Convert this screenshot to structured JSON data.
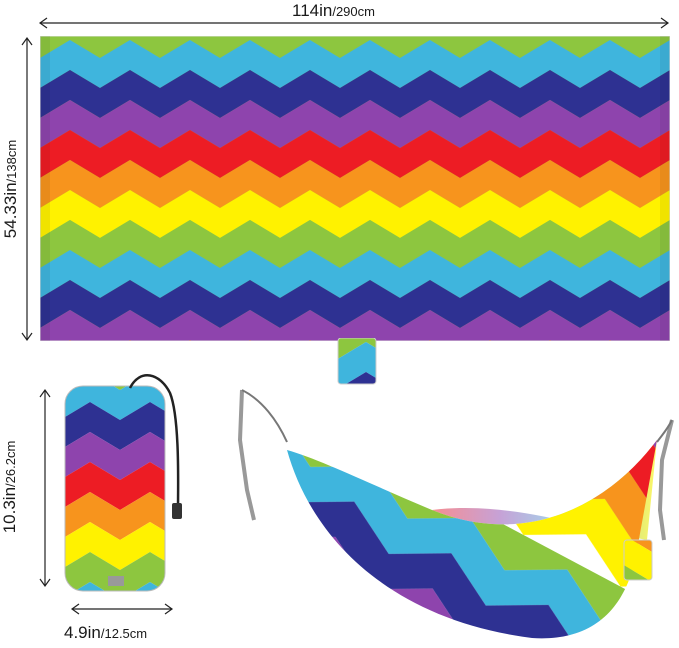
{
  "dimensions": {
    "width": {
      "imperial": "114in",
      "metric": "/290cm"
    },
    "height": {
      "imperial": "54.33in",
      "metric": "/138cm"
    },
    "bag_height": {
      "imperial": "10.3in",
      "metric": "/26.2cm"
    },
    "bag_width": {
      "imperial": "4.9in",
      "metric": "/12.5cm"
    }
  },
  "colors": {
    "stripes": [
      "#8dc63f",
      "#3fb5dd",
      "#2e3192",
      "#8e44ad",
      "#ed1c24",
      "#f7941d",
      "#fff200"
    ],
    "arrow": "#222222"
  }
}
